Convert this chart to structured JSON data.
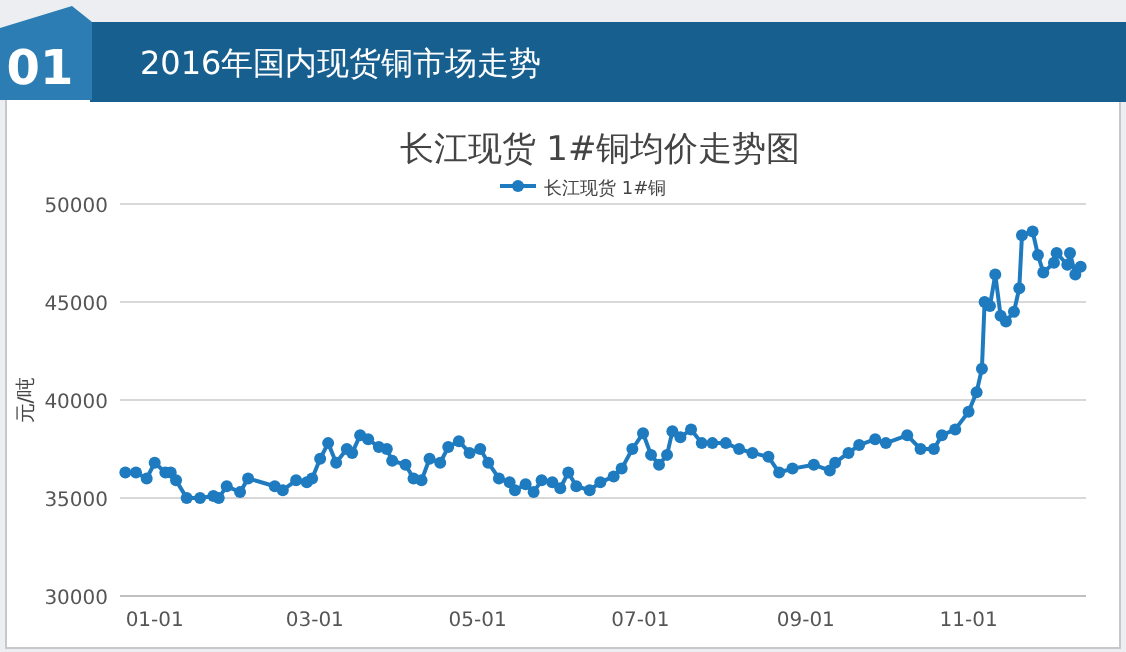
{
  "chart_data": {
    "type": "line",
    "title": "2016年国内现货铜市场走势",
    "subtitle": "长江现货 1#铜均价走势图",
    "ylabel": "元/吨",
    "annotations": [
      "01"
    ],
    "x": [
      "2015-12-21",
      "2015-12-25",
      "2015-12-29",
      "2016-01-01",
      "2016-01-05",
      "2016-01-07",
      "2016-01-09",
      "2016-01-13",
      "2016-01-18",
      "2016-01-23",
      "2016-01-25",
      "2016-01-28",
      "2016-02-02",
      "2016-02-05",
      "2016-02-15",
      "2016-02-18",
      "2016-02-23",
      "2016-02-27",
      "2016-02-29",
      "2016-03-03",
      "2016-03-06",
      "2016-03-09",
      "2016-03-13",
      "2016-03-15",
      "2016-03-18",
      "2016-03-21",
      "2016-03-25",
      "2016-03-28",
      "2016-03-30",
      "2016-04-04",
      "2016-04-07",
      "2016-04-10",
      "2016-04-13",
      "2016-04-17",
      "2016-04-20",
      "2016-04-24",
      "2016-04-28",
      "2016-05-02",
      "2016-05-05",
      "2016-05-09",
      "2016-05-13",
      "2016-05-15",
      "2016-05-19",
      "2016-05-22",
      "2016-05-25",
      "2016-05-29",
      "2016-06-01",
      "2016-06-04",
      "2016-06-07",
      "2016-06-12",
      "2016-06-16",
      "2016-06-21",
      "2016-06-24",
      "2016-06-28",
      "2016-07-02",
      "2016-07-05",
      "2016-07-08",
      "2016-07-11",
      "2016-07-13",
      "2016-07-16",
      "2016-07-20",
      "2016-07-24",
      "2016-07-28",
      "2016-08-02",
      "2016-08-07",
      "2016-08-12",
      "2016-08-18",
      "2016-08-22",
      "2016-08-27",
      "2016-09-04",
      "2016-09-10",
      "2016-09-12",
      "2016-09-17",
      "2016-09-21",
      "2016-09-27",
      "2016-10-01",
      "2016-10-09",
      "2016-10-14",
      "2016-10-19",
      "2016-10-22",
      "2016-10-27",
      "2016-11-01",
      "2016-11-04",
      "2016-11-06",
      "2016-11-07",
      "2016-11-09",
      "2016-11-11",
      "2016-11-13",
      "2016-11-15",
      "2016-11-18",
      "2016-11-20",
      "2016-11-21",
      "2016-11-25",
      "2016-11-27",
      "2016-11-29",
      "2016-12-03",
      "2016-12-04",
      "2016-12-08",
      "2016-12-09",
      "2016-12-11",
      "2016-12-13"
    ],
    "series": [
      {
        "name": "长江现货 1#铜",
        "color": "#1f7bc0",
        "values": [
          36300,
          36300,
          36000,
          36800,
          36300,
          36300,
          35900,
          35000,
          35000,
          35100,
          35000,
          35600,
          35300,
          36000,
          35600,
          35400,
          35900,
          35800,
          36000,
          37000,
          37800,
          36800,
          37500,
          37300,
          38200,
          38000,
          37600,
          37500,
          36900,
          36700,
          36000,
          35900,
          37000,
          36800,
          37600,
          37900,
          37300,
          37500,
          36800,
          36000,
          35800,
          35400,
          35700,
          35300,
          35900,
          35800,
          35500,
          36300,
          35600,
          35400,
          35800,
          36100,
          36500,
          37500,
          38300,
          37200,
          36700,
          37200,
          38400,
          38100,
          38500,
          37800,
          37800,
          37800,
          37500,
          37300,
          37100,
          36300,
          36500,
          36700,
          36400,
          36800,
          37300,
          37700,
          38000,
          37800,
          38200,
          37500,
          37500,
          38200,
          38500,
          39400,
          40400,
          41600,
          45000,
          44800,
          46400,
          44300,
          44000,
          44500,
          45700,
          48400,
          48600,
          47400,
          46500,
          47000,
          47500,
          46900,
          47500,
          46400,
          46800
        ]
      }
    ],
    "xlim": [
      "2015-12-19",
      "2016-12-15"
    ],
    "ylim": [
      30000,
      50000
    ],
    "xticks": [
      {
        "value": "2016-01-01",
        "label": "01-01"
      },
      {
        "value": "2016-03-01",
        "label": "03-01"
      },
      {
        "value": "2016-05-01",
        "label": "05-01"
      },
      {
        "value": "2016-07-01",
        "label": "07-01"
      },
      {
        "value": "2016-09-01",
        "label": "09-01"
      },
      {
        "value": "2016-11-01",
        "label": "11-01"
      }
    ],
    "yticks": [
      30000,
      35000,
      40000,
      45000,
      50000
    ],
    "grid": "y",
    "legend": "top",
    "marker": "circle"
  }
}
